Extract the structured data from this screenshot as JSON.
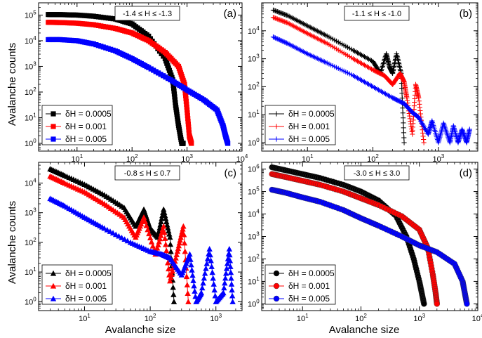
{
  "figure": {
    "xlabel": "Avalanche size",
    "ylabel": "Avalanche counts",
    "colors": {
      "0.0005": "#000000",
      "0.001": "#ff0000",
      "0.005": "#0000ff"
    }
  },
  "chart_data": [
    {
      "panel": "(a)",
      "type": "line",
      "marker": "square",
      "title": "-1.4 ≤ H ≤ -1.3",
      "xlabel": "",
      "ylabel": "Avalanche counts",
      "xscale": "log",
      "yscale": "log",
      "xlim": [
        2,
        10000
      ],
      "ylim": [
        0.5,
        300000
      ],
      "xticks": [
        {
          "v": 10,
          "t": "10",
          "e": "1"
        },
        {
          "v": 100,
          "t": "10",
          "e": "2"
        },
        {
          "v": 1000,
          "t": "10",
          "e": "3"
        },
        {
          "v": 10000,
          "t": "10",
          "e": "4"
        }
      ],
      "yticks": [
        {
          "v": 1,
          "t": "10",
          "e": "0"
        },
        {
          "v": 10,
          "t": "10",
          "e": "1"
        },
        {
          "v": 100,
          "t": "10",
          "e": "2"
        },
        {
          "v": 1000,
          "t": "10",
          "e": "3"
        },
        {
          "v": 10000,
          "t": "10",
          "e": "4"
        },
        {
          "v": 100000,
          "t": "10",
          "e": "5"
        }
      ],
      "legend_position": "bottom-left",
      "series": [
        {
          "name": "δH = 0.0005",
          "color": "#000000",
          "x": [
            3,
            5,
            10,
            20,
            50,
            100,
            200,
            400,
            550,
            620,
            700,
            800,
            850
          ],
          "y": [
            105000,
            104000,
            100000,
            90000,
            70000,
            45000,
            15000,
            2000,
            300,
            30,
            5,
            1,
            1
          ]
        },
        {
          "name": "δH = 0.001",
          "color": "#ff0000",
          "x": [
            3,
            5,
            10,
            20,
            50,
            100,
            200,
            400,
            700,
            900,
            1000,
            1100,
            1200
          ],
          "y": [
            52000,
            51000,
            48000,
            42000,
            30000,
            20000,
            10000,
            3500,
            1000,
            200,
            20,
            2,
            1
          ]
        },
        {
          "name": "δH = 0.005",
          "color": "#0000ff",
          "x": [
            3,
            5,
            10,
            20,
            50,
            100,
            200,
            500,
            1000,
            2000,
            3500,
            4500,
            5000,
            5500
          ],
          "y": [
            11000,
            11000,
            10000,
            7500,
            4000,
            2000,
            900,
            300,
            120,
            50,
            20,
            5,
            2,
            1
          ]
        }
      ]
    },
    {
      "panel": "(b)",
      "type": "line",
      "marker": "plus",
      "title": "-1.1 ≤ H ≤ -1.0",
      "xlabel": "",
      "ylabel": "",
      "xscale": "log",
      "yscale": "log",
      "xlim": [
        2,
        4000
      ],
      "ylim": [
        0.5,
        100000
      ],
      "xticks": [
        {
          "v": 10,
          "t": "10",
          "e": "1"
        },
        {
          "v": 100,
          "t": "10",
          "e": "2"
        },
        {
          "v": 1000,
          "t": "10",
          "e": "3"
        }
      ],
      "yticks": [
        {
          "v": 1,
          "t": "10",
          "e": "0"
        },
        {
          "v": 10,
          "t": "10",
          "e": "1"
        },
        {
          "v": 100,
          "t": "10",
          "e": "2"
        },
        {
          "v": 1000,
          "t": "10",
          "e": "3"
        },
        {
          "v": 10000,
          "t": "10",
          "e": "4"
        }
      ],
      "legend_position": "bottom-left",
      "series": [
        {
          "name": "δH = 0.0005",
          "color": "#000000",
          "x": [
            3,
            5,
            10,
            20,
            50,
            100,
            130,
            160,
            180,
            200,
            230,
            270,
            300
          ],
          "y": [
            55000,
            35000,
            15000,
            6500,
            2000,
            800,
            300,
            1500,
            500,
            300,
            1500,
            300,
            1
          ]
        },
        {
          "name": "δH = 0.001",
          "color": "#ff0000",
          "x": [
            3,
            5,
            10,
            20,
            50,
            100,
            150,
            200,
            260,
            300,
            330,
            400,
            450,
            500,
            600
          ],
          "y": [
            30000,
            19000,
            8000,
            3500,
            1000,
            400,
            250,
            120,
            300,
            150,
            40,
            2,
            120,
            40,
            1
          ]
        },
        {
          "name": "δH = 0.005",
          "color": "#0000ff",
          "x": [
            3,
            5,
            10,
            20,
            50,
            100,
            200,
            300,
            400,
            500,
            700,
            800,
            1000,
            1200,
            1500,
            1700,
            2000,
            2300,
            2700,
            3000
          ],
          "y": [
            6000,
            3500,
            1500,
            700,
            250,
            100,
            40,
            25,
            12,
            8,
            2,
            6,
            1,
            5,
            1,
            4,
            1,
            3,
            1,
            3
          ]
        }
      ]
    },
    {
      "panel": "(c)",
      "type": "line",
      "marker": "triangle",
      "title": "-0.8 ≤ H ≤ 0.7",
      "xlabel": "Avalanche size",
      "ylabel": "Avalanche counts",
      "xscale": "log",
      "yscale": "log",
      "xlim": [
        2,
        2500
      ],
      "ylim": [
        0.5,
        50000
      ],
      "xticks": [
        {
          "v": 10,
          "t": "10",
          "e": "1"
        },
        {
          "v": 100,
          "t": "10",
          "e": "2"
        },
        {
          "v": 1000,
          "t": "10",
          "e": "3"
        }
      ],
      "yticks": [
        {
          "v": 1,
          "t": "10",
          "e": "0"
        },
        {
          "v": 10,
          "t": "10",
          "e": "1"
        },
        {
          "v": 100,
          "t": "10",
          "e": "2"
        },
        {
          "v": 1000,
          "t": "10",
          "e": "3"
        },
        {
          "v": 10000,
          "t": "10",
          "e": "4"
        }
      ],
      "legend_position": "bottom-left",
      "series": [
        {
          "name": "δH = 0.0005",
          "color": "#000000",
          "x": [
            3,
            5,
            10,
            20,
            40,
            60,
            80,
            100,
            130,
            160,
            200,
            230
          ],
          "y": [
            30000,
            18000,
            9000,
            4000,
            1500,
            350,
            1300,
            300,
            150,
            1300,
            150,
            1
          ]
        },
        {
          "name": "δH = 0.001",
          "color": "#ff0000",
          "x": [
            3,
            5,
            10,
            20,
            40,
            60,
            80,
            120,
            160,
            200,
            260,
            320,
            380
          ],
          "y": [
            17000,
            10000,
            5000,
            2000,
            700,
            150,
            700,
            40,
            350,
            5,
            50,
            350,
            1
          ]
        },
        {
          "name": "δH = 0.005",
          "color": "#0000ff",
          "x": [
            3,
            5,
            10,
            20,
            50,
            100,
            150,
            200,
            300,
            400,
            500,
            600,
            800,
            1000,
            1300,
            1600,
            1800
          ],
          "y": [
            3000,
            1700,
            700,
            300,
            100,
            50,
            40,
            30,
            8,
            40,
            1,
            2,
            60,
            1,
            2,
            60,
            1
          ]
        }
      ]
    },
    {
      "panel": "(d)",
      "type": "line",
      "marker": "circle",
      "title": "-3.0 ≤ H ≤ 3.0",
      "xlabel": "Avalanche size",
      "ylabel": "",
      "xscale": "log",
      "yscale": "log",
      "xlim": [
        2,
        10000
      ],
      "ylim": [
        0.5,
        2000000
      ],
      "xticks": [
        {
          "v": 10,
          "t": "10",
          "e": "1"
        },
        {
          "v": 100,
          "t": "10",
          "e": "2"
        },
        {
          "v": 1000,
          "t": "10",
          "e": "3"
        },
        {
          "v": 10000,
          "t": "10",
          "e": "4"
        }
      ],
      "yticks": [
        {
          "v": 1,
          "t": "10",
          "e": "0"
        },
        {
          "v": 10,
          "t": "10",
          "e": "1"
        },
        {
          "v": 100,
          "t": "10",
          "e": "2"
        },
        {
          "v": 1000,
          "t": "10",
          "e": "3"
        },
        {
          "v": 10000,
          "t": "10",
          "e": "4"
        },
        {
          "v": 100000,
          "t": "10",
          "e": "5"
        },
        {
          "v": 1000000,
          "t": "10",
          "e": "6"
        }
      ],
      "legend_position": "bottom-left",
      "series": [
        {
          "name": "δH = 0.0005",
          "color": "#000000",
          "x": [
            3,
            5,
            10,
            20,
            50,
            100,
            200,
            400,
            600,
            800,
            1000,
            1100,
            1200
          ],
          "y": [
            1200000,
            900000,
            600000,
            400000,
            200000,
            100000,
            40000,
            8000,
            1000,
            100,
            10,
            3,
            1
          ]
        },
        {
          "name": "δH = 0.001",
          "color": "#ff0000",
          "x": [
            3,
            5,
            10,
            20,
            50,
            100,
            200,
            500,
            1000,
            1400,
            1700,
            1900,
            2000
          ],
          "y": [
            600000,
            450000,
            300000,
            200000,
            100000,
            50000,
            25000,
            8000,
            2000,
            300,
            20,
            3,
            1
          ]
        },
        {
          "name": "δH = 0.005",
          "color": "#0000ff",
          "x": [
            3,
            5,
            10,
            20,
            50,
            100,
            200,
            500,
            1000,
            2000,
            4000,
            5500,
            6000,
            6500
          ],
          "y": [
            120000,
            90000,
            55000,
            35000,
            15000,
            6500,
            3000,
            1000,
            400,
            200,
            60,
            10,
            3,
            1
          ]
        }
      ]
    }
  ]
}
